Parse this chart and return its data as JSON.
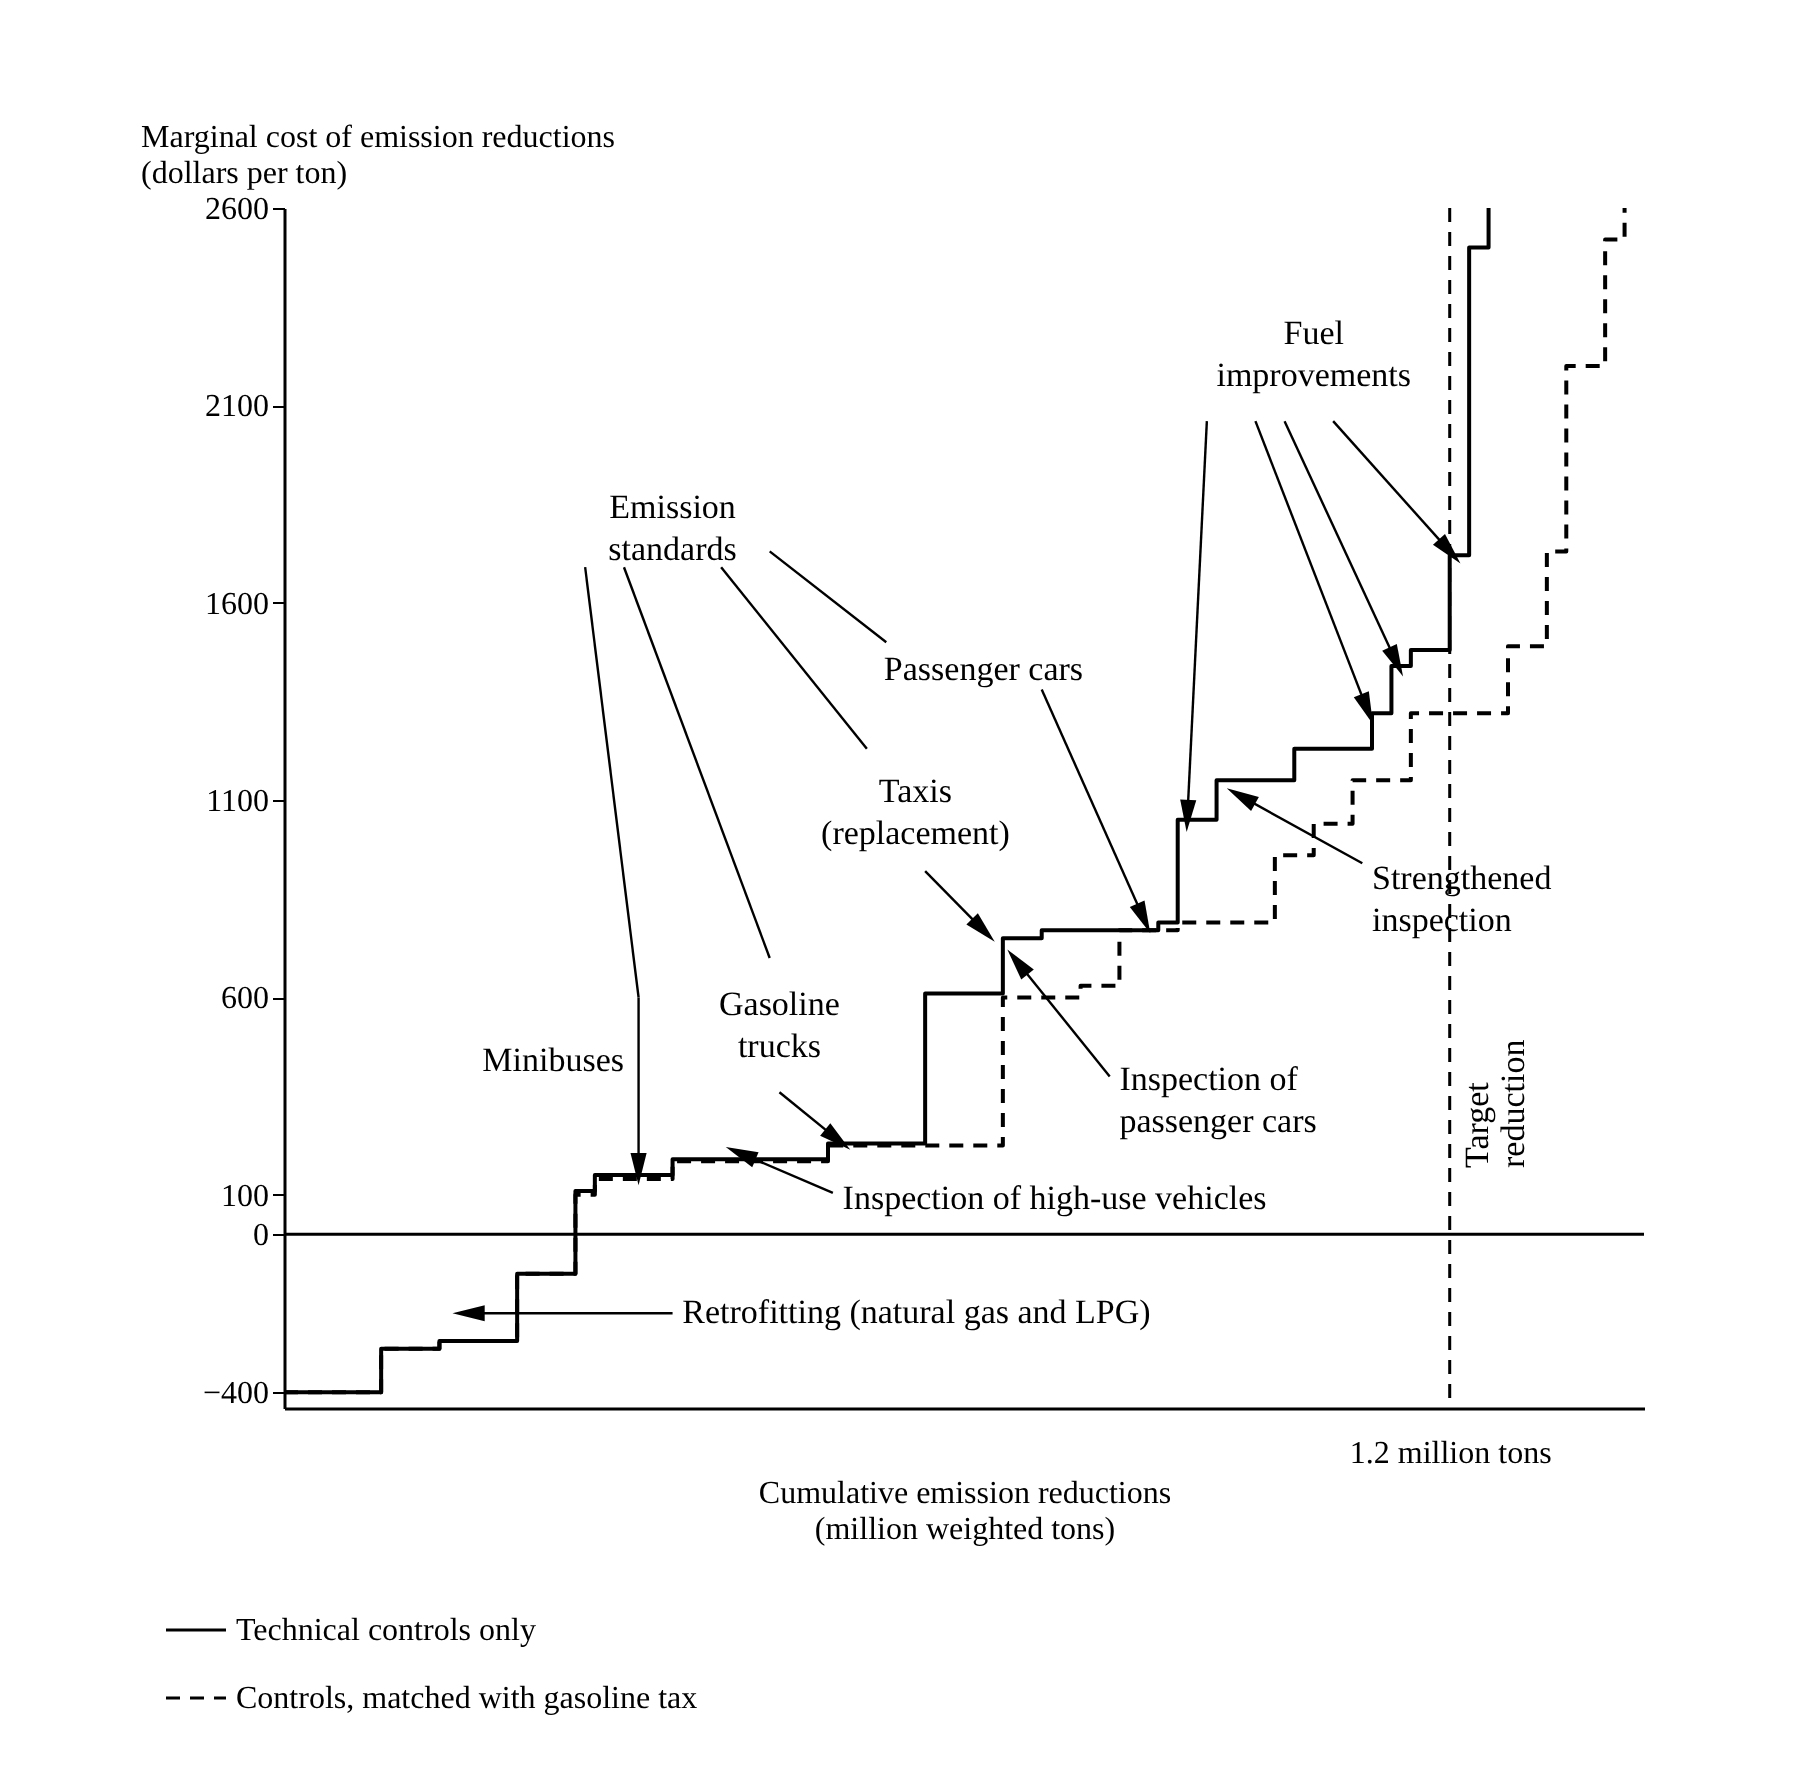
{
  "chart_data": {
    "type": "step",
    "ylabel": "Marginal cost of emission reductions (dollars per ton)",
    "xlabel": "Cumulative emission reductions (million weighted tons)",
    "categories": [
      null,
      null,
      null,
      null,
      null,
      null,
      null,
      null,
      null,
      null,
      null,
      null,
      null,
      null,
      null,
      null,
      null,
      null,
      null,
      null,
      null,
      null,
      null,
      null,
      null,
      null,
      null,
      null,
      null,
      null,
      null,
      null,
      null,
      null,
      null,
      null,
      null,
      null,
      null,
      null,
      null,
      null,
      null,
      null,
      null,
      null,
      null,
      null,
      null,
      null,
      null,
      null,
      null,
      null,
      null,
      null,
      null,
      null,
      null,
      null,
      "1.2 million tons",
      null,
      null,
      null,
      null,
      null,
      null,
      null,
      null,
      null
    ],
    "ylim": [
      -440,
      2600
    ],
    "yticks": [
      2600,
      2100,
      1600,
      1100,
      600,
      100,
      0,
      -400
    ],
    "grid": false,
    "legend": "bottom left",
    "marker": "none",
    "series": [
      {
        "name": "Technical controls only",
        "color": "#000000",
        "line_style": "solid",
        "values": [
          -400,
          -400,
          -400,
          -400,
          -400,
          -290,
          -290,
          -290,
          -270,
          -270,
          -270,
          -270,
          -100,
          -100,
          -100,
          110,
          150,
          150,
          150,
          150,
          190,
          190,
          190,
          190,
          190,
          190,
          190,
          190,
          230,
          230,
          230,
          230,
          230,
          610,
          610,
          610,
          610,
          750,
          750,
          770,
          770,
          770,
          770,
          770,
          770,
          790,
          1050,
          1050,
          1150,
          1150,
          1150,
          1150,
          1230,
          1230,
          1230,
          1230,
          1320,
          1440,
          1480,
          1480,
          1720,
          2500,
          2600,
          null,
          null,
          null,
          null,
          null,
          null,
          null
        ]
      },
      {
        "name": "Controls, matched with gasoline tax",
        "color": "#000000",
        "line_style": "dashed",
        "values": [
          -400,
          -400,
          -400,
          -400,
          -400,
          -290,
          -290,
          -290,
          -270,
          -270,
          -270,
          -270,
          -100,
          -100,
          -100,
          100,
          140,
          140,
          140,
          140,
          185,
          185,
          185,
          185,
          185,
          185,
          185,
          185,
          225,
          225,
          225,
          225,
          225,
          225,
          225,
          225,
          225,
          600,
          600,
          600,
          600,
          630,
          630,
          770,
          770,
          770,
          790,
          790,
          790,
          790,
          790,
          960,
          960,
          1040,
          1040,
          1150,
          1150,
          1150,
          1320,
          1320,
          1320,
          1320,
          1320,
          1490,
          1490,
          1730,
          2200,
          2200,
          2520,
          2600
        ]
      }
    ],
    "ref_lines": [
      {
        "axis": "y",
        "value": 0,
        "color": "#000000",
        "line_style": "solid"
      },
      {
        "axis": "x",
        "value": "1.2 million tons",
        "label": "Target reduction",
        "color": "#000000",
        "line_style": "dashed"
      }
    ],
    "annotations": [
      "Emission standards",
      "Minibuses",
      "Gasoline trucks",
      "Taxis (replacement)",
      "Passenger cars",
      "Fuel improvements",
      "Strengthened inspection",
      "Inspection of passenger cars",
      "Inspection of high-use vehicles",
      "Retrofitting (natural gas and LPG)"
    ]
  }
}
